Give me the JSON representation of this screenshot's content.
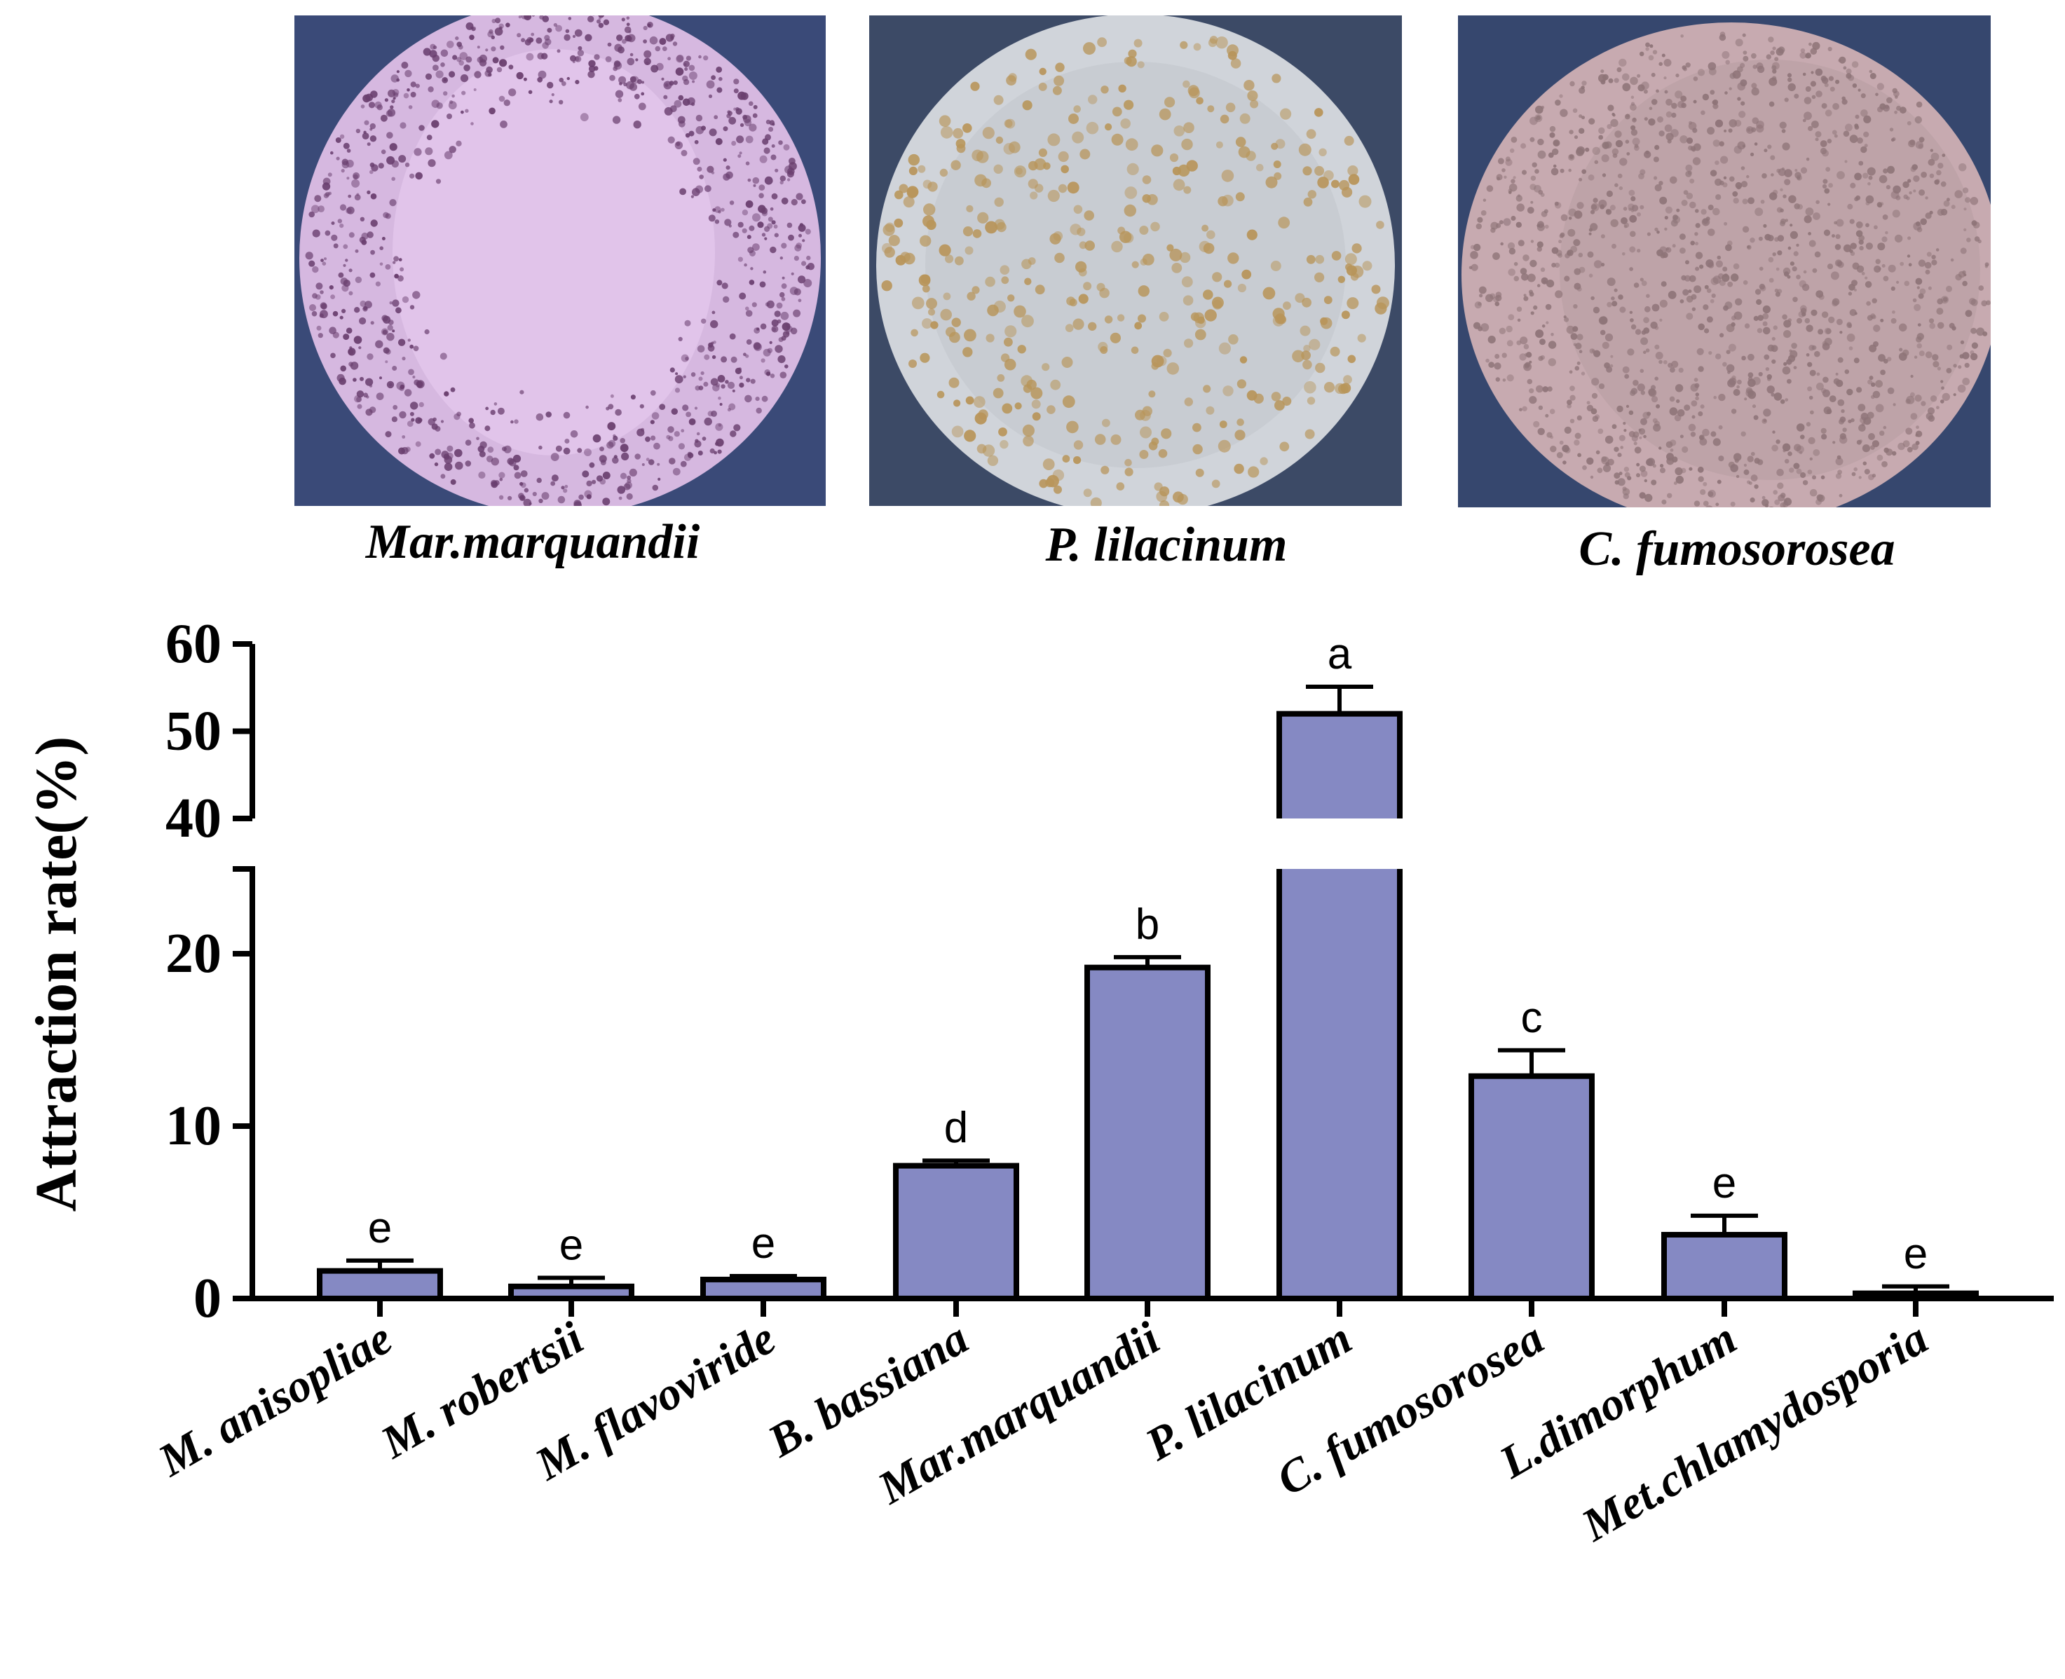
{
  "photos": [
    {
      "caption": "Mar.marquandii",
      "bg": "#3a4a78",
      "disc": "#d6b8e0",
      "center": "#e4c8ee",
      "dots": "#6a3f6f"
    },
    {
      "caption": "P. lilacinum",
      "bg": "#3c4a66",
      "disc": "#d0d4da",
      "center": "#c5c9cf",
      "dots": "#b8955a"
    },
    {
      "caption": "C. fumosorosea",
      "bg": "#36476e",
      "disc": "#c7aab0",
      "center": "#bba0a6",
      "dots": "#8e7478"
    }
  ],
  "chart_data": {
    "type": "bar",
    "ylabel": "Attraction rate(%)",
    "xlabel": "",
    "ylim": [
      0,
      60
    ],
    "axis_break": [
      25,
      40
    ],
    "yticks": [
      "0",
      "10",
      "20",
      "40",
      "50",
      "60"
    ],
    "categories": [
      "M. anisopliae",
      "M. robertsii",
      "M. flavoviride",
      "B. bassiana",
      "Mar.marquandii",
      "P. lilacinum",
      "C. fumosorosea",
      "L.dimorphum",
      "Met.chlamydosporia"
    ],
    "values": [
      1.6,
      0.7,
      1.1,
      7.7,
      19.2,
      52.0,
      12.9,
      3.7,
      0.3
    ],
    "errors": [
      0.6,
      0.5,
      0.2,
      0.3,
      0.6,
      3.1,
      1.5,
      1.1,
      0.4
    ],
    "significance": [
      "e",
      "e",
      "e",
      "d",
      "b",
      "a",
      "c",
      "e",
      "e"
    ],
    "bar_color": "#8589c3"
  }
}
